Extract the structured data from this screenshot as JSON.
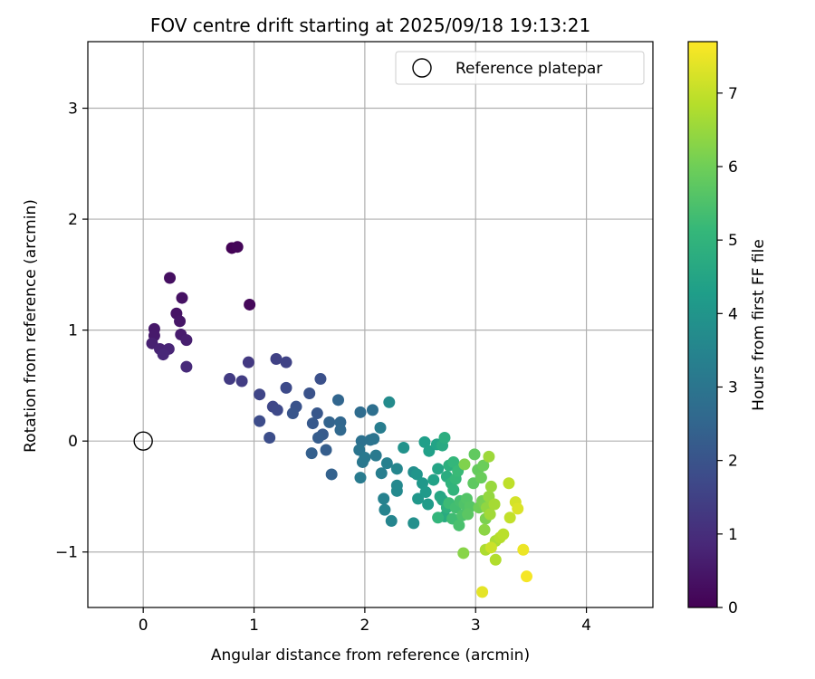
{
  "chart_data": {
    "type": "scatter",
    "title": "FOV centre drift starting at 2025/09/18 19:13:21",
    "xlabel": "Angular distance from reference (arcmin)",
    "ylabel": "Rotation from reference (arcmin)",
    "xlim": [
      -0.5,
      4.6
    ],
    "ylim": [
      -1.5,
      3.6
    ],
    "xticks": [
      0,
      1,
      2,
      3,
      4
    ],
    "xtick_labels": [
      "0",
      "1",
      "2",
      "3",
      "4"
    ],
    "yticks": [
      -1,
      0,
      1,
      2,
      3
    ],
    "ytick_labels": [
      "−1",
      "0",
      "1",
      "2",
      "3"
    ],
    "grid": true,
    "legend": {
      "position": "top-right",
      "label": "Reference platepar"
    },
    "reference_point": {
      "x": 0,
      "y": 0
    },
    "colorbar": {
      "label": "Hours from first FF file",
      "range": [
        0,
        7.7
      ],
      "ticks": [
        0,
        1,
        2,
        3,
        4,
        5,
        6,
        7
      ],
      "tick_labels": [
        "0",
        "1",
        "2",
        "3",
        "4",
        "5",
        "6",
        "7"
      ],
      "colormap": "viridis",
      "colors": [
        "#440154",
        "#482878",
        "#3e4989",
        "#31688e",
        "#26828e",
        "#1f9e89",
        "#35b779",
        "#6ece58",
        "#b5de2b",
        "#fde725"
      ]
    },
    "points": [
      {
        "x": 0.8,
        "y": 1.74,
        "t": 0.05
      },
      {
        "x": 0.85,
        "y": 1.75,
        "t": 0.1
      },
      {
        "x": 0.96,
        "y": 1.23,
        "t": 0.15
      },
      {
        "x": 0.24,
        "y": 1.47,
        "t": 0.3
      },
      {
        "x": 0.35,
        "y": 1.29,
        "t": 0.35
      },
      {
        "x": 0.3,
        "y": 1.15,
        "t": 0.4
      },
      {
        "x": 0.33,
        "y": 1.08,
        "t": 0.45
      },
      {
        "x": 0.1,
        "y": 1.01,
        "t": 0.5
      },
      {
        "x": 0.1,
        "y": 0.95,
        "t": 0.55
      },
      {
        "x": 0.34,
        "y": 0.96,
        "t": 0.6
      },
      {
        "x": 0.39,
        "y": 0.91,
        "t": 0.65
      },
      {
        "x": 0.08,
        "y": 0.88,
        "t": 0.7
      },
      {
        "x": 0.15,
        "y": 0.83,
        "t": 0.75
      },
      {
        "x": 0.23,
        "y": 0.83,
        "t": 0.8
      },
      {
        "x": 0.18,
        "y": 0.78,
        "t": 0.85
      },
      {
        "x": 0.39,
        "y": 0.67,
        "t": 0.9
      },
      {
        "x": 0.95,
        "y": 0.71,
        "t": 1.3
      },
      {
        "x": 0.78,
        "y": 0.56,
        "t": 1.35
      },
      {
        "x": 0.89,
        "y": 0.54,
        "t": 1.4
      },
      {
        "x": 1.2,
        "y": 0.74,
        "t": 1.5
      },
      {
        "x": 1.29,
        "y": 0.71,
        "t": 1.55
      },
      {
        "x": 1.05,
        "y": 0.42,
        "t": 1.6
      },
      {
        "x": 1.17,
        "y": 0.31,
        "t": 1.65
      },
      {
        "x": 1.21,
        "y": 0.28,
        "t": 1.7
      },
      {
        "x": 1.29,
        "y": 0.48,
        "t": 1.75
      },
      {
        "x": 1.05,
        "y": 0.18,
        "t": 1.8
      },
      {
        "x": 1.14,
        "y": 0.03,
        "t": 1.85
      },
      {
        "x": 1.6,
        "y": 0.56,
        "t": 1.9
      },
      {
        "x": 1.5,
        "y": 0.43,
        "t": 1.95
      },
      {
        "x": 1.38,
        "y": 0.31,
        "t": 2.0
      },
      {
        "x": 1.35,
        "y": 0.25,
        "t": 2.05
      },
      {
        "x": 1.57,
        "y": 0.25,
        "t": 2.1
      },
      {
        "x": 1.53,
        "y": 0.16,
        "t": 2.15
      },
      {
        "x": 1.62,
        "y": 0.06,
        "t": 2.2
      },
      {
        "x": 1.58,
        "y": 0.03,
        "t": 2.25
      },
      {
        "x": 1.65,
        "y": -0.08,
        "t": 2.3
      },
      {
        "x": 1.52,
        "y": -0.11,
        "t": 2.35
      },
      {
        "x": 1.7,
        "y": -0.3,
        "t": 2.4
      },
      {
        "x": 1.68,
        "y": 0.17,
        "t": 2.45
      },
      {
        "x": 1.76,
        "y": 0.37,
        "t": 2.5
      },
      {
        "x": 1.78,
        "y": 0.17,
        "t": 2.55
      },
      {
        "x": 1.78,
        "y": 0.1,
        "t": 2.6
      },
      {
        "x": 1.96,
        "y": 0.26,
        "t": 2.7
      },
      {
        "x": 2.07,
        "y": 0.28,
        "t": 2.8
      },
      {
        "x": 1.97,
        "y": 0.0,
        "t": 2.85
      },
      {
        "x": 2.05,
        "y": 0.01,
        "t": 2.9
      },
      {
        "x": 2.08,
        "y": 0.02,
        "t": 2.95
      },
      {
        "x": 1.95,
        "y": -0.08,
        "t": 3.0
      },
      {
        "x": 1.98,
        "y": -0.19,
        "t": 3.05
      },
      {
        "x": 2.0,
        "y": -0.15,
        "t": 3.1
      },
      {
        "x": 2.1,
        "y": -0.13,
        "t": 3.15
      },
      {
        "x": 1.96,
        "y": -0.33,
        "t": 3.2
      },
      {
        "x": 2.14,
        "y": 0.12,
        "t": 3.25
      },
      {
        "x": 2.15,
        "y": -0.29,
        "t": 3.3
      },
      {
        "x": 2.2,
        "y": -0.2,
        "t": 3.35
      },
      {
        "x": 2.17,
        "y": -0.52,
        "t": 3.4
      },
      {
        "x": 2.18,
        "y": -0.62,
        "t": 3.45
      },
      {
        "x": 2.24,
        "y": -0.72,
        "t": 3.5
      },
      {
        "x": 2.29,
        "y": -0.25,
        "t": 3.55
      },
      {
        "x": 2.29,
        "y": -0.4,
        "t": 3.6
      },
      {
        "x": 2.29,
        "y": -0.45,
        "t": 3.65
      },
      {
        "x": 2.22,
        "y": 0.35,
        "t": 3.7
      },
      {
        "x": 2.44,
        "y": -0.28,
        "t": 3.8
      },
      {
        "x": 2.44,
        "y": -0.74,
        "t": 3.85
      },
      {
        "x": 2.35,
        "y": -0.06,
        "t": 3.9
      },
      {
        "x": 2.47,
        "y": -0.3,
        "t": 4.0
      },
      {
        "x": 2.48,
        "y": -0.52,
        "t": 4.05
      },
      {
        "x": 2.52,
        "y": -0.38,
        "t": 4.1
      },
      {
        "x": 2.55,
        "y": -0.46,
        "t": 4.15
      },
      {
        "x": 2.57,
        "y": -0.57,
        "t": 4.2
      },
      {
        "x": 2.54,
        "y": -0.01,
        "t": 4.3
      },
      {
        "x": 2.58,
        "y": -0.09,
        "t": 4.35
      },
      {
        "x": 2.62,
        "y": -0.35,
        "t": 4.4
      },
      {
        "x": 2.65,
        "y": -0.03,
        "t": 4.45
      },
      {
        "x": 2.66,
        "y": -0.25,
        "t": 4.5
      },
      {
        "x": 2.68,
        "y": -0.5,
        "t": 4.55
      },
      {
        "x": 2.7,
        "y": -0.53,
        "t": 4.6
      },
      {
        "x": 2.7,
        "y": -0.04,
        "t": 4.65
      },
      {
        "x": 2.72,
        "y": -0.68,
        "t": 4.7
      },
      {
        "x": 2.74,
        "y": -0.32,
        "t": 4.75
      },
      {
        "x": 2.72,
        "y": 0.03,
        "t": 4.8
      },
      {
        "x": 2.76,
        "y": -0.22,
        "t": 4.85
      },
      {
        "x": 2.74,
        "y": -0.6,
        "t": 4.9
      },
      {
        "x": 2.78,
        "y": -0.38,
        "t": 4.95
      },
      {
        "x": 2.8,
        "y": -0.44,
        "t": 5.0
      },
      {
        "x": 2.66,
        "y": -0.69,
        "t": 5.05
      },
      {
        "x": 2.8,
        "y": -0.19,
        "t": 5.1
      },
      {
        "x": 2.82,
        "y": -0.34,
        "t": 5.15
      },
      {
        "x": 2.84,
        "y": -0.27,
        "t": 5.2
      },
      {
        "x": 2.76,
        "y": -0.56,
        "t": 5.25
      },
      {
        "x": 2.79,
        "y": -0.7,
        "t": 5.3
      },
      {
        "x": 2.82,
        "y": -0.6,
        "t": 5.35
      },
      {
        "x": 2.86,
        "y": -0.54,
        "t": 5.4
      },
      {
        "x": 2.85,
        "y": -0.76,
        "t": 5.45
      },
      {
        "x": 2.88,
        "y": -0.67,
        "t": 5.5
      },
      {
        "x": 2.9,
        "y": -0.57,
        "t": 5.55
      },
      {
        "x": 2.92,
        "y": -0.52,
        "t": 5.6
      },
      {
        "x": 2.95,
        "y": -0.59,
        "t": 5.65
      },
      {
        "x": 2.93,
        "y": -0.66,
        "t": 5.7
      },
      {
        "x": 2.98,
        "y": -0.38,
        "t": 5.75
      },
      {
        "x": 2.99,
        "y": -0.12,
        "t": 5.8
      },
      {
        "x": 3.02,
        "y": -0.26,
        "t": 5.85
      },
      {
        "x": 3.05,
        "y": -0.33,
        "t": 5.9
      },
      {
        "x": 3.07,
        "y": -0.22,
        "t": 5.95
      },
      {
        "x": 3.03,
        "y": -0.6,
        "t": 6.0
      },
      {
        "x": 3.06,
        "y": -0.54,
        "t": 6.05
      },
      {
        "x": 3.08,
        "y": -0.57,
        "t": 6.1
      },
      {
        "x": 3.09,
        "y": -0.7,
        "t": 6.15
      },
      {
        "x": 2.9,
        "y": -0.21,
        "t": 6.2
      },
      {
        "x": 2.89,
        "y": -1.01,
        "t": 6.3
      },
      {
        "x": 3.08,
        "y": -0.8,
        "t": 6.35
      },
      {
        "x": 3.1,
        "y": -0.6,
        "t": 6.4
      },
      {
        "x": 3.12,
        "y": -0.5,
        "t": 6.45
      },
      {
        "x": 3.14,
        "y": -0.41,
        "t": 6.5
      },
      {
        "x": 3.12,
        "y": -0.14,
        "t": 6.55
      },
      {
        "x": 3.13,
        "y": -0.66,
        "t": 6.6
      },
      {
        "x": 3.17,
        "y": -0.57,
        "t": 6.65
      },
      {
        "x": 3.18,
        "y": -0.9,
        "t": 6.7
      },
      {
        "x": 3.09,
        "y": -0.98,
        "t": 6.75
      },
      {
        "x": 3.18,
        "y": -1.07,
        "t": 6.8
      },
      {
        "x": 3.22,
        "y": -0.87,
        "t": 6.85
      },
      {
        "x": 3.25,
        "y": -0.84,
        "t": 6.9
      },
      {
        "x": 3.3,
        "y": -0.38,
        "t": 6.95
      },
      {
        "x": 3.31,
        "y": -0.69,
        "t": 7.0
      },
      {
        "x": 3.14,
        "y": -0.96,
        "t": 7.1
      },
      {
        "x": 3.36,
        "y": -0.55,
        "t": 7.2
      },
      {
        "x": 3.38,
        "y": -0.61,
        "t": 7.3
      },
      {
        "x": 3.06,
        "y": -1.36,
        "t": 7.4
      },
      {
        "x": 3.43,
        "y": -0.98,
        "t": 7.5
      },
      {
        "x": 3.46,
        "y": -1.22,
        "t": 7.6
      }
    ]
  }
}
